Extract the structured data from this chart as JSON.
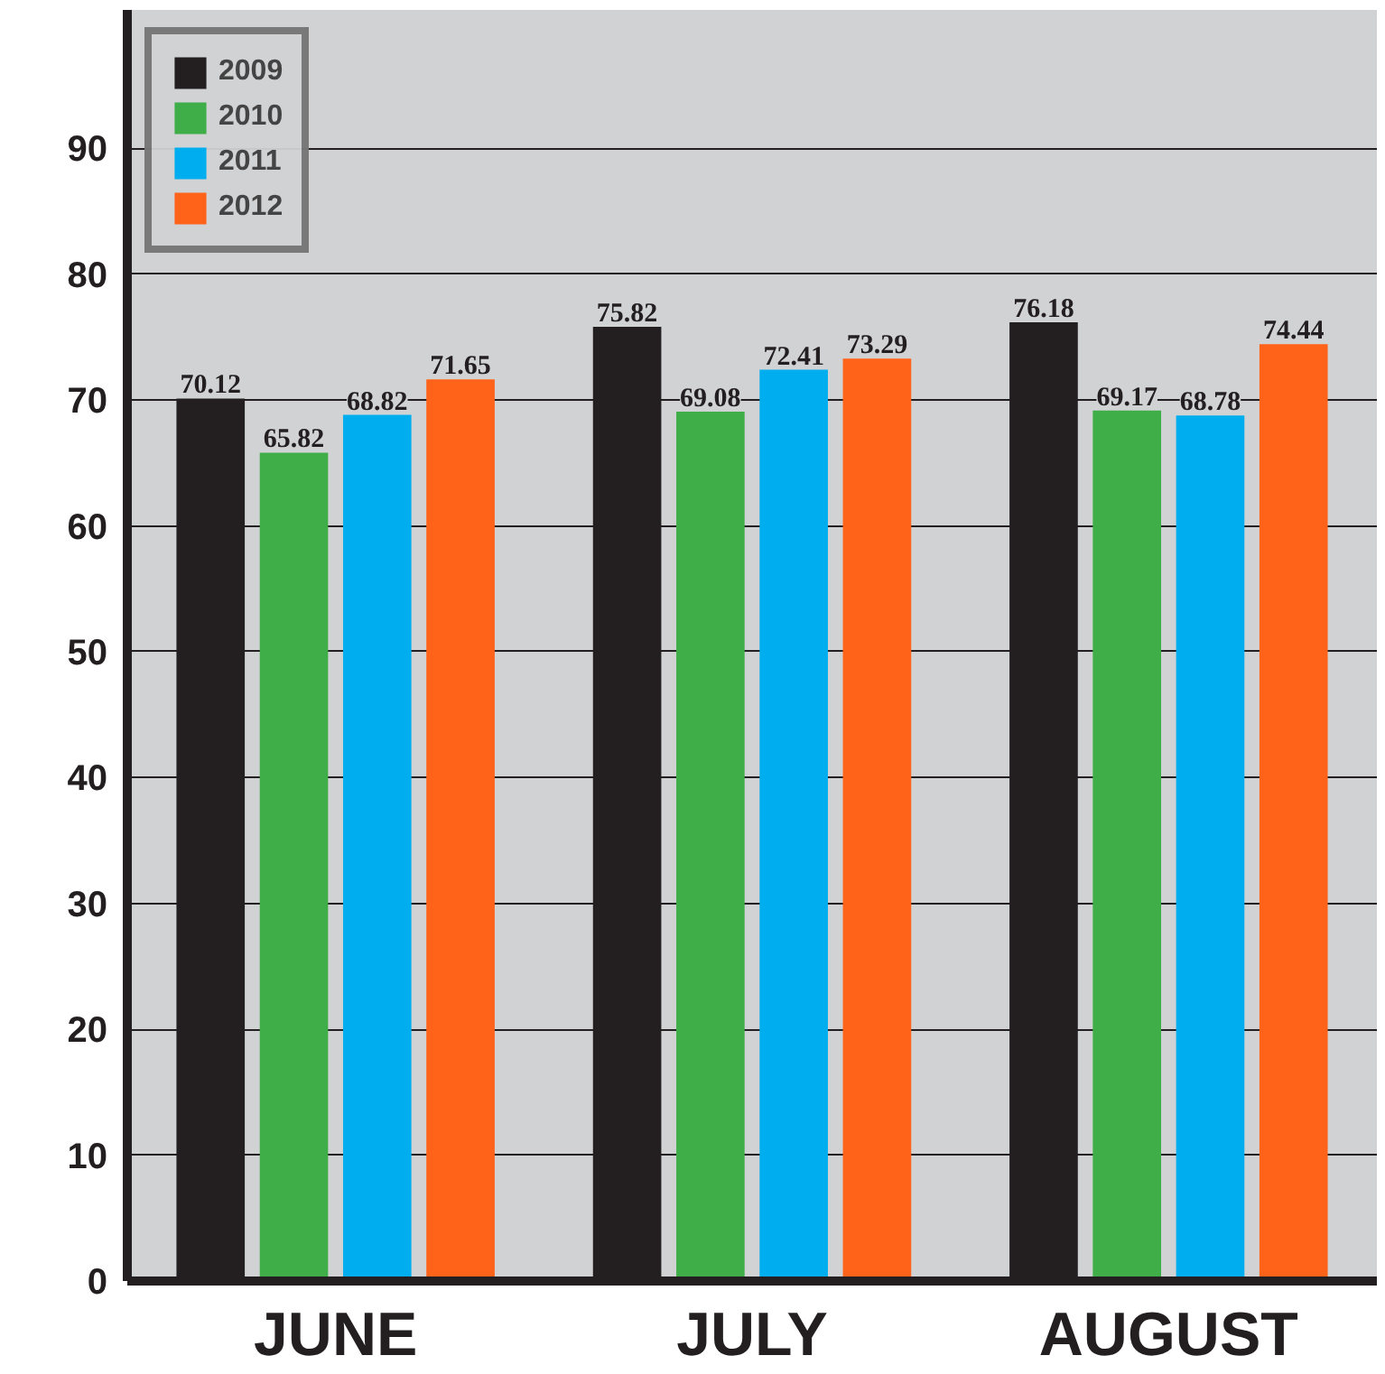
{
  "chart_data": {
    "type": "bar",
    "categories": [
      "JUNE",
      "JULY",
      "AUGUST"
    ],
    "series": [
      {
        "name": "2009",
        "color": "#231f20",
        "values": [
          70.12,
          75.82,
          76.18
        ]
      },
      {
        "name": "2010",
        "color": "#3fae49",
        "values": [
          65.82,
          69.08,
          69.17
        ]
      },
      {
        "name": "2011",
        "color": "#00aeef",
        "values": [
          68.82,
          72.41,
          68.78
        ]
      },
      {
        "name": "2012",
        "color": "#ff6319",
        "values": [
          71.65,
          73.29,
          74.44
        ]
      }
    ],
    "ylim": [
      0,
      101
    ],
    "yticks": [
      0,
      10,
      20,
      30,
      40,
      50,
      60,
      70,
      80,
      90
    ],
    "grid": "y",
    "legend": "top left",
    "data_labels": true
  }
}
